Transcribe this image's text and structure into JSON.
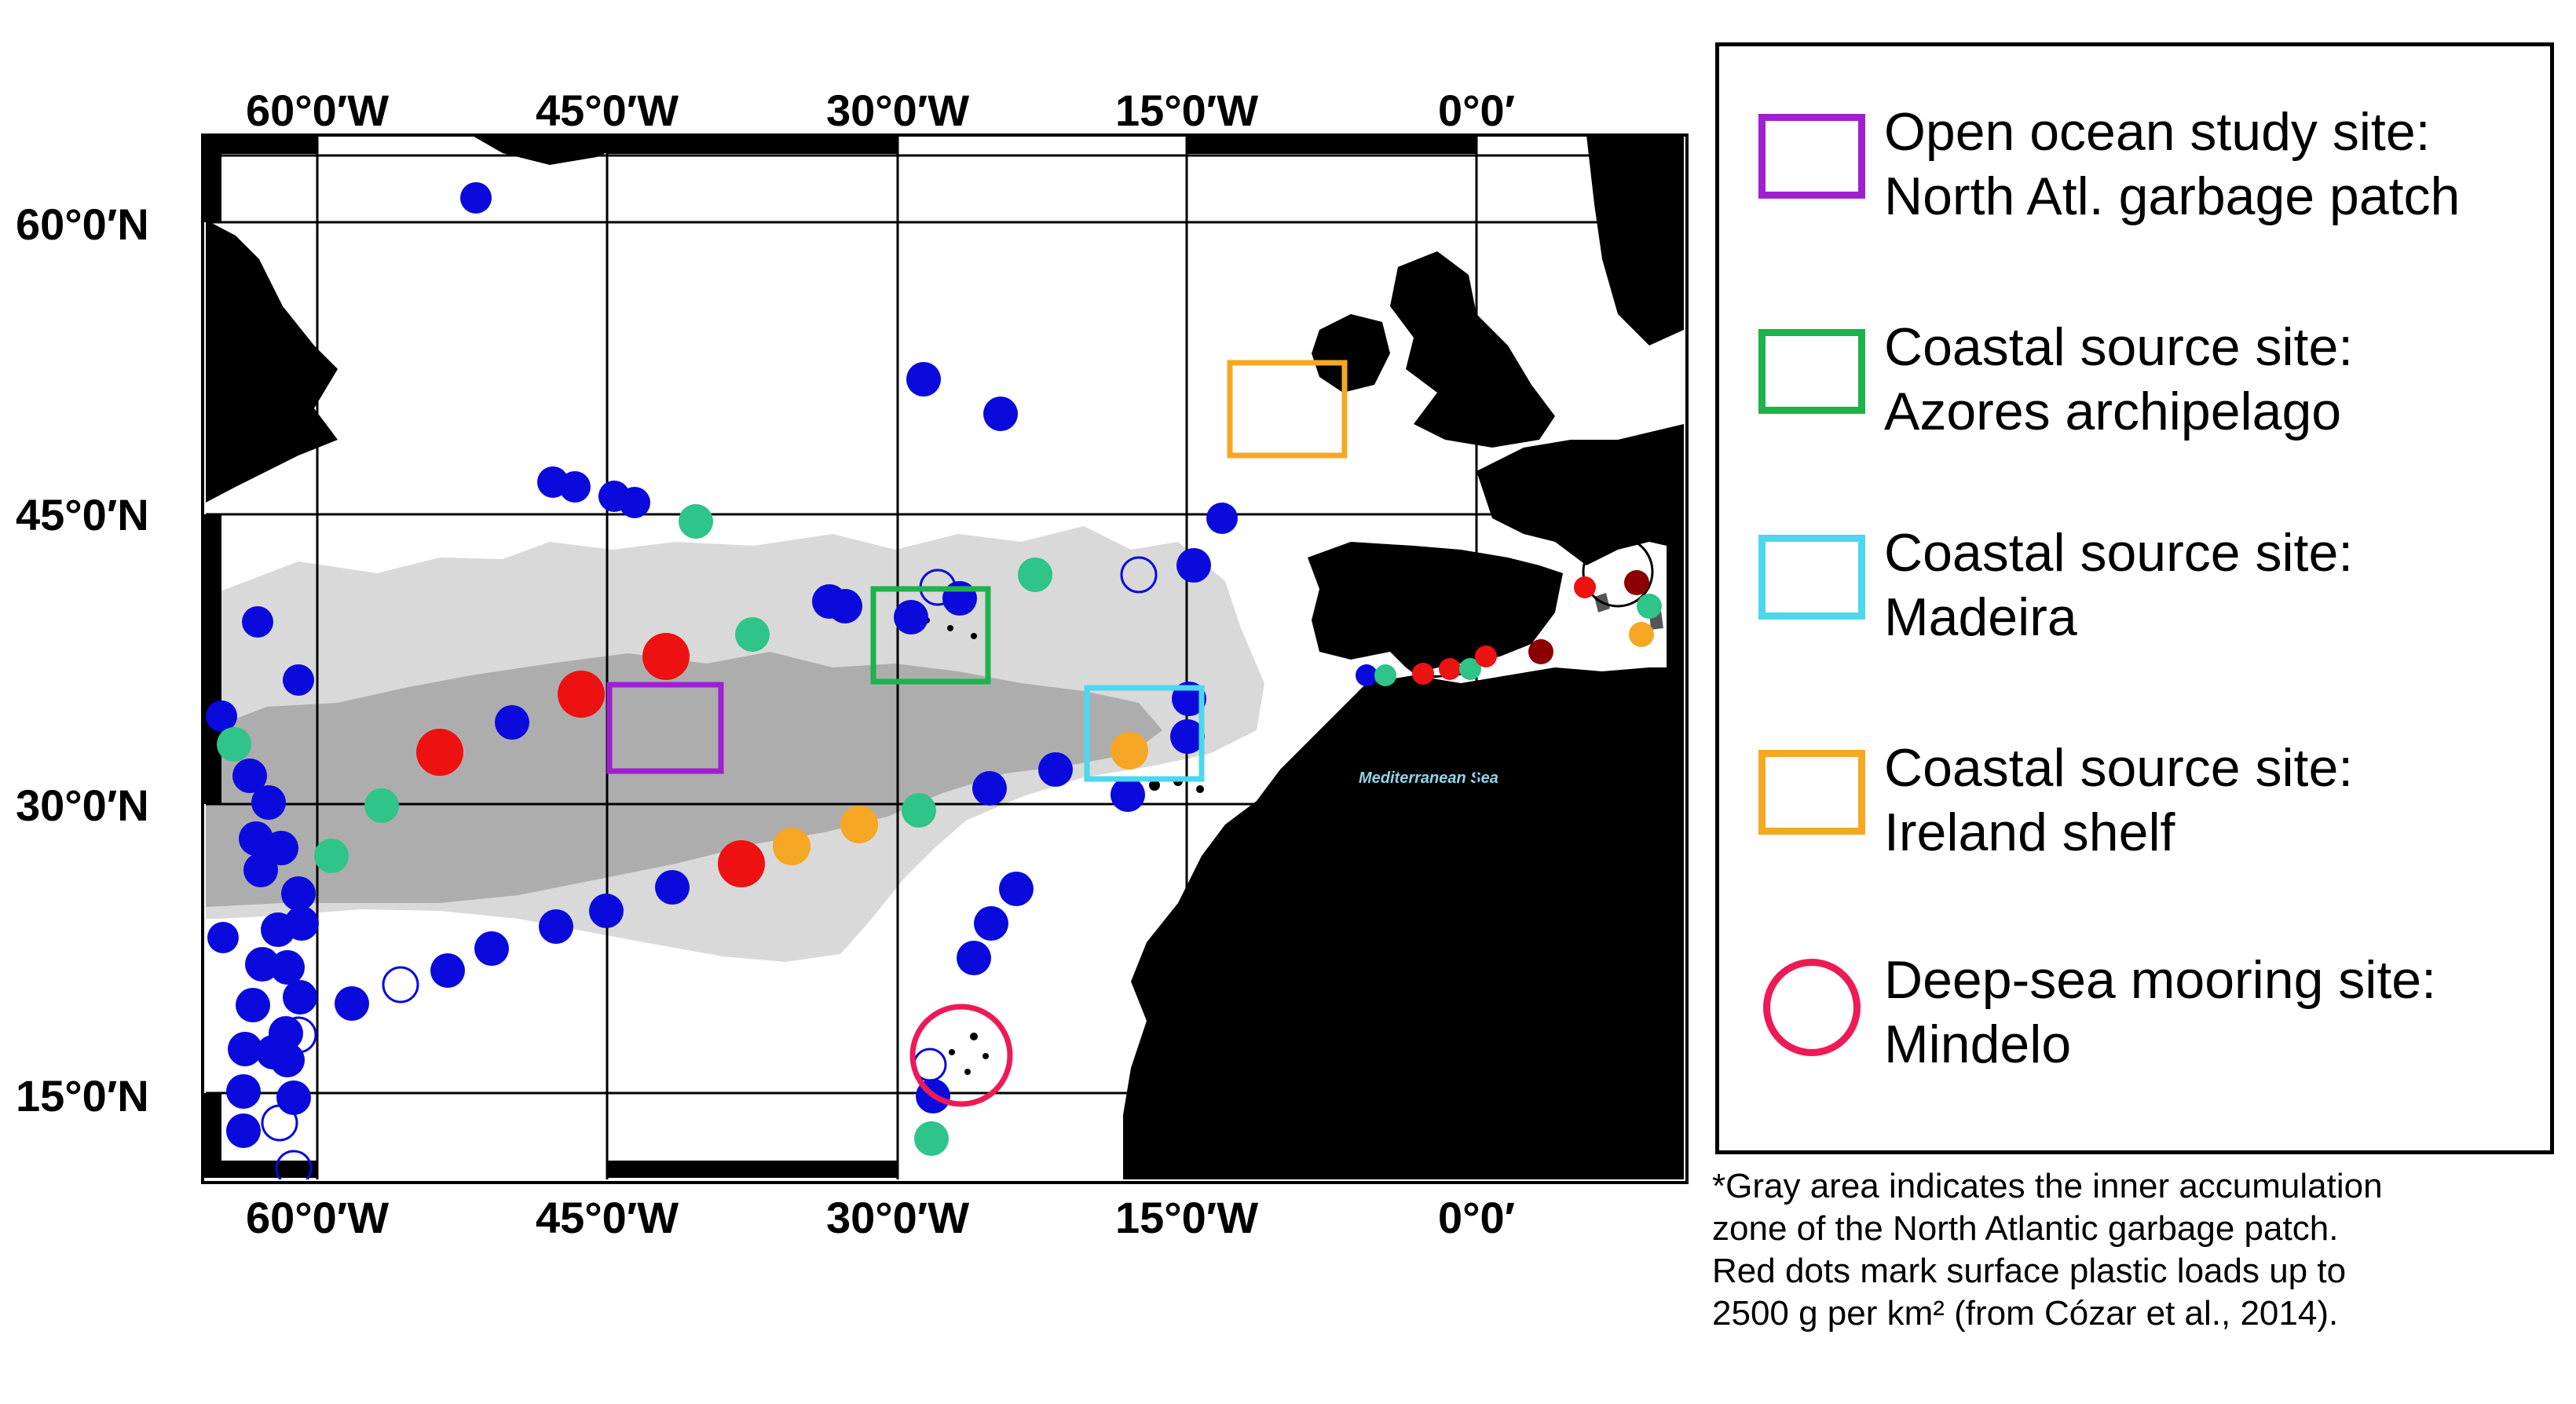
{
  "map": {
    "top_lon_labels": [
      "60°0′W",
      "45°0′W",
      "30°0′W",
      "15°0′W",
      "0°0′"
    ],
    "bottom_lon_labels": [
      "60°0′W",
      "45°0′W",
      "30°0′W",
      "15°0′W",
      "0°0′"
    ],
    "lat_labels": [
      "60°0′N",
      "45°0′N",
      "30°0′N",
      "15°0′N"
    ],
    "sea_label": "Mediterranean Sea",
    "colors": {
      "land": "#000000",
      "ocean": "#ffffff",
      "outer_patch": "#d9d9d9",
      "inner_patch": "#adadad",
      "blue_dot": "#0a0adc",
      "green_dot": "#2ec48a",
      "orange_dot": "#f5a623",
      "red_dot": "#ee1111",
      "darkred_dot": "#8b0000"
    }
  },
  "legend": {
    "items": [
      {
        "line1": "Open ocean study site:",
        "line2": "North Atl. garbage patch",
        "color": "#a020d0",
        "shape": "square"
      },
      {
        "line1": "Coastal source site:",
        "line2": "Azores archipelago",
        "color": "#1db24b",
        "shape": "square"
      },
      {
        "line1": "Coastal source site:",
        "line2": "Madeira",
        "color": "#4cd7ee",
        "shape": "square"
      },
      {
        "line1": "Coastal source site:",
        "line2": "Ireland shelf",
        "color": "#f4a923",
        "shape": "square"
      },
      {
        "line1": "Deep-sea mooring site:",
        "line2": "Mindelo",
        "color": "#ee1a55",
        "shape": "circle"
      }
    ]
  },
  "footnote": {
    "lines": [
      "*Gray area indicates the inner accumulation",
      "zone of the North Atlantic garbage patch.",
      "Red dots mark surface plastic loads up to",
      "2500 g per km² (from Cózar et al., 2014)."
    ]
  }
}
